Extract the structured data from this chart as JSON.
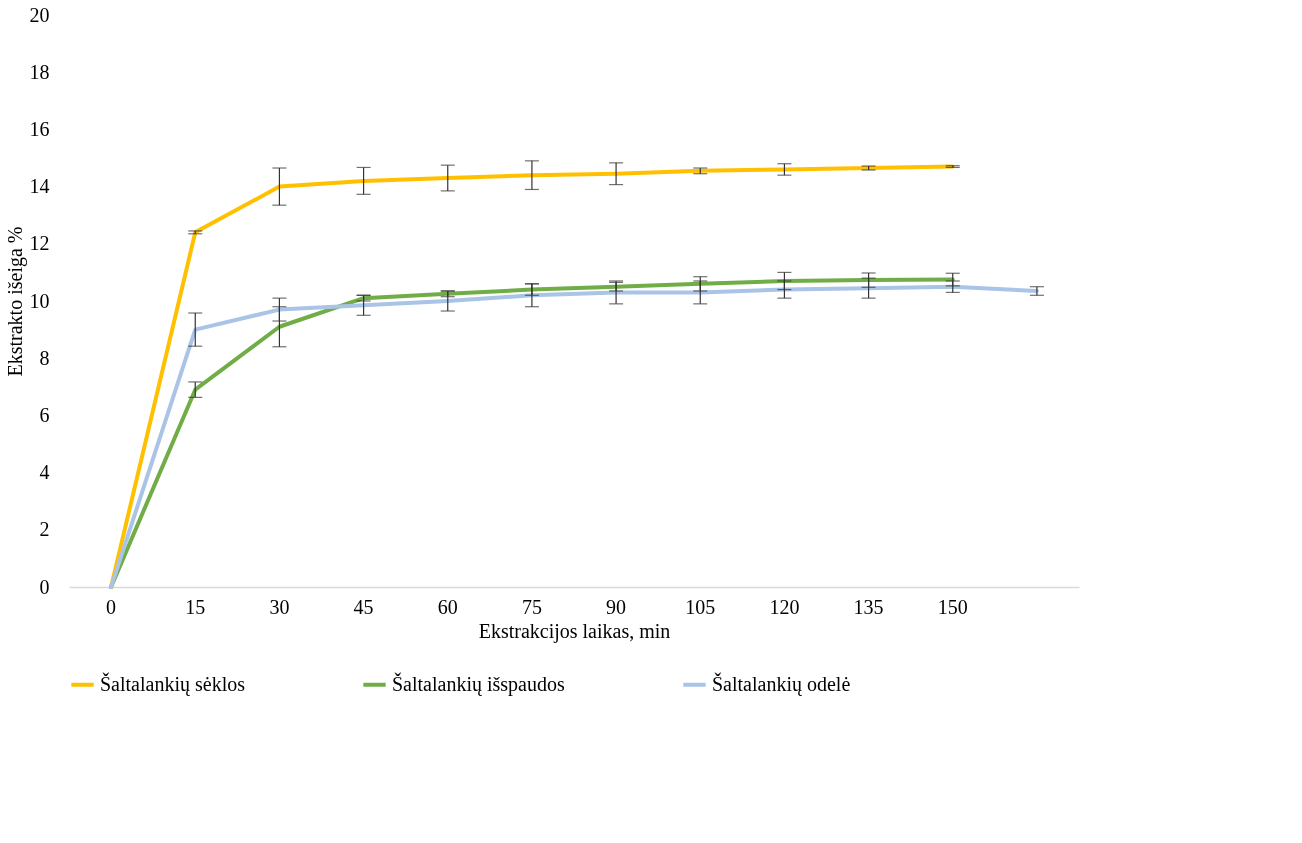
{
  "chart_data": {
    "type": "line",
    "xlabel": "Ekstrakcijos laikas, min",
    "ylabel": "Ekstrakto išeiga %",
    "categories": [
      "0",
      "15",
      "30",
      "45",
      "60",
      "75",
      "90",
      "105",
      "120",
      "135",
      "150",
      null
    ],
    "ylim": [
      0,
      20
    ],
    "yticks": [
      0,
      2,
      4,
      6,
      8,
      10,
      12,
      14,
      16,
      18,
      20
    ],
    "grid": false,
    "legend": "bottom",
    "series": [
      {
        "name": "Šaltalankių sėklos",
        "color": "#ffc000",
        "values": [
          0,
          12.4,
          14.0,
          14.2,
          14.3,
          14.4,
          14.45,
          14.55,
          14.6,
          14.65,
          14.7,
          null
        ],
        "errors": [
          null,
          0.05,
          0.65,
          0.47,
          0.45,
          0.5,
          0.38,
          0.1,
          0.2,
          0.07,
          0.03,
          null
        ]
      },
      {
        "name": "Šaltalankių išspaudos",
        "color": "#70ad47",
        "values": [
          0,
          6.9,
          9.1,
          10.1,
          10.25,
          10.4,
          10.5,
          10.6,
          10.7,
          10.73,
          10.75,
          null
        ],
        "errors": [
          null,
          0.27,
          0.7,
          0.1,
          0.1,
          0.2,
          0.15,
          0.25,
          0.3,
          0.25,
          0.22,
          null
        ]
      },
      {
        "name": "Šaltalankių odelė",
        "color": "#a9c4e6",
        "values": [
          0,
          9.0,
          9.7,
          9.85,
          10.0,
          10.2,
          10.3,
          10.3,
          10.4,
          10.45,
          10.5,
          10.35
        ],
        "errors": [
          null,
          0.58,
          0.4,
          0.35,
          0.35,
          0.4,
          0.4,
          0.4,
          0.3,
          0.35,
          0.2,
          0.15
        ]
      }
    ]
  }
}
